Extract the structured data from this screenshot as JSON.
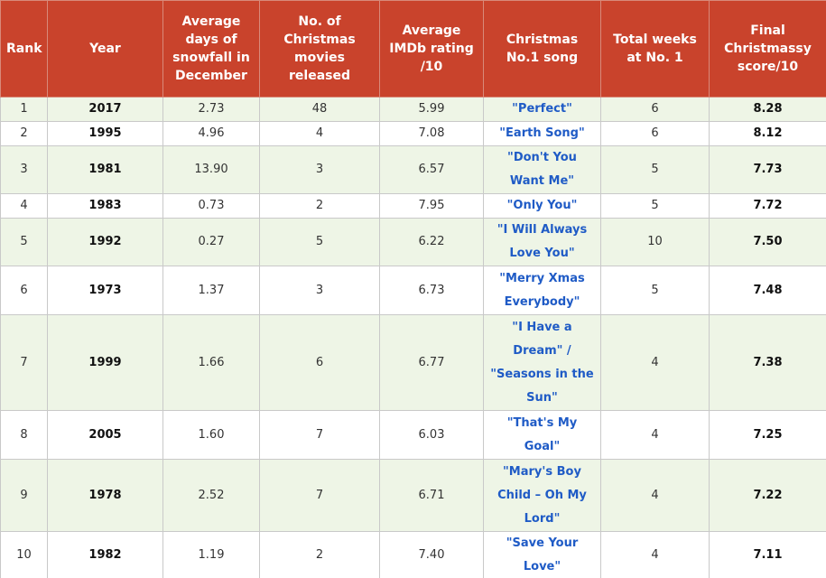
{
  "table": {
    "header": [
      "Rank",
      "Year",
      "Average days of snowfall in December",
      "No. of Christmas movies released",
      "Average IMDb rating /10",
      "Christmas No.1 song",
      "Total weeks at No. 1",
      "Final Christmassy score/10"
    ],
    "rows": [
      [
        "1",
        "2017",
        "2.73",
        "48",
        "5.99",
        "\"Perfect\"",
        "6",
        "8.28"
      ],
      [
        "2",
        "1995",
        "4.96",
        "4",
        "7.08",
        "\"Earth Song\"",
        "6",
        "8.12"
      ],
      [
        "3",
        "1981",
        "13.90",
        "3",
        "6.57",
        "\"Don't You Want Me\"",
        "5",
        "7.73"
      ],
      [
        "4",
        "1983",
        "0.73",
        "2",
        "7.95",
        "\"Only You\"",
        "5",
        "7.72"
      ],
      [
        "5",
        "1992",
        "0.27",
        "5",
        "6.22",
        "\"I Will Always Love You\"",
        "10",
        "7.50"
      ],
      [
        "6",
        "1973",
        "1.37",
        "3",
        "6.73",
        "\"Merry Xmas Everybody\"",
        "5",
        "7.48"
      ],
      [
        "7",
        "1999",
        "1.66",
        "6",
        "6.77",
        "\"I Have a Dream\" / \"Seasons in the Sun\"",
        "4",
        "7.38"
      ],
      [
        "8",
        "2005",
        "1.60",
        "7",
        "6.03",
        "\"That's My Goal\"",
        "4",
        "7.25"
      ],
      [
        "9",
        "1978",
        "2.52",
        "7",
        "6.71",
        "\"Mary's Boy Child – Oh My Lord\"",
        "4",
        "7.22"
      ],
      [
        "10",
        "1982",
        "1.19",
        "2",
        "7.40",
        "\"Save Your Love\"",
        "4",
        "7.11"
      ]
    ]
  }
}
